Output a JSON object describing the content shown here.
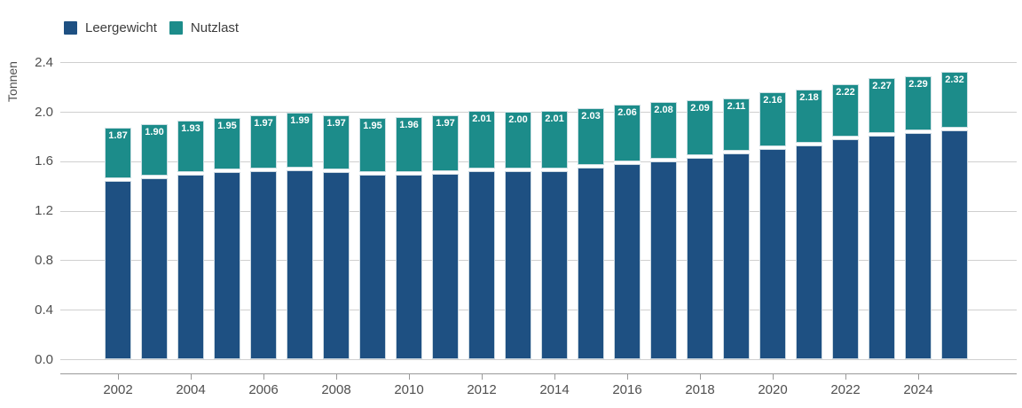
{
  "legend": {
    "items": [
      {
        "label": "Leergewicht",
        "color": "#1e5082"
      },
      {
        "label": "Nutzlast",
        "color": "#1c8c8a"
      }
    ]
  },
  "y_axis": {
    "title": "Tonnen",
    "ticks": [
      "0.0",
      "0.4",
      "0.8",
      "1.2",
      "1.6",
      "2.0",
      "2.4"
    ]
  },
  "x_axis": {
    "ticks": [
      "2002",
      "2004",
      "2006",
      "2008",
      "2010",
      "2012",
      "2014",
      "2016",
      "2018",
      "2020",
      "2022",
      "2024"
    ]
  },
  "chart_data": {
    "type": "bar",
    "stacked": true,
    "title": "",
    "xlabel": "",
    "ylabel": "Tonnen",
    "ylim": [
      0,
      2.4
    ],
    "grid": true,
    "legend_position": "top-left",
    "categories": [
      2002,
      2003,
      2004,
      2005,
      2006,
      2007,
      2008,
      2009,
      2010,
      2011,
      2012,
      2013,
      2014,
      2015,
      2016,
      2017,
      2018,
      2019,
      2020,
      2021,
      2022,
      2023,
      2024,
      2025
    ],
    "series": [
      {
        "name": "Leergewicht",
        "color": "#1e5082",
        "values": [
          1.44,
          1.46,
          1.49,
          1.51,
          1.52,
          1.53,
          1.51,
          1.49,
          1.49,
          1.5,
          1.52,
          1.52,
          1.52,
          1.55,
          1.58,
          1.6,
          1.63,
          1.66,
          1.7,
          1.73,
          1.78,
          1.81,
          1.83,
          1.85
        ]
      },
      {
        "name": "Nutzlast",
        "color": "#1c8c8a",
        "values": [
          0.43,
          0.44,
          0.44,
          0.44,
          0.45,
          0.46,
          0.46,
          0.46,
          0.47,
          0.47,
          0.49,
          0.48,
          0.49,
          0.48,
          0.48,
          0.48,
          0.46,
          0.45,
          0.46,
          0.45,
          0.44,
          0.46,
          0.46,
          0.47
        ]
      }
    ],
    "total_labels": [
      "1.87",
      "1.90",
      "1.93",
      "1.95",
      "1.97",
      "1.99",
      "1.97",
      "1.95",
      "1.96",
      "1.97",
      "2.01",
      "2.00",
      "2.01",
      "2.03",
      "2.06",
      "2.08",
      "2.09",
      "2.11",
      "2.16",
      "2.18",
      "2.22",
      "2.27",
      "2.29",
      "2.32"
    ]
  },
  "colors": {
    "gridline": "#cfcfcf",
    "axis_line": "#999999",
    "tick_text": "#4f4f4f",
    "bar_label_text": "#ffffff"
  }
}
